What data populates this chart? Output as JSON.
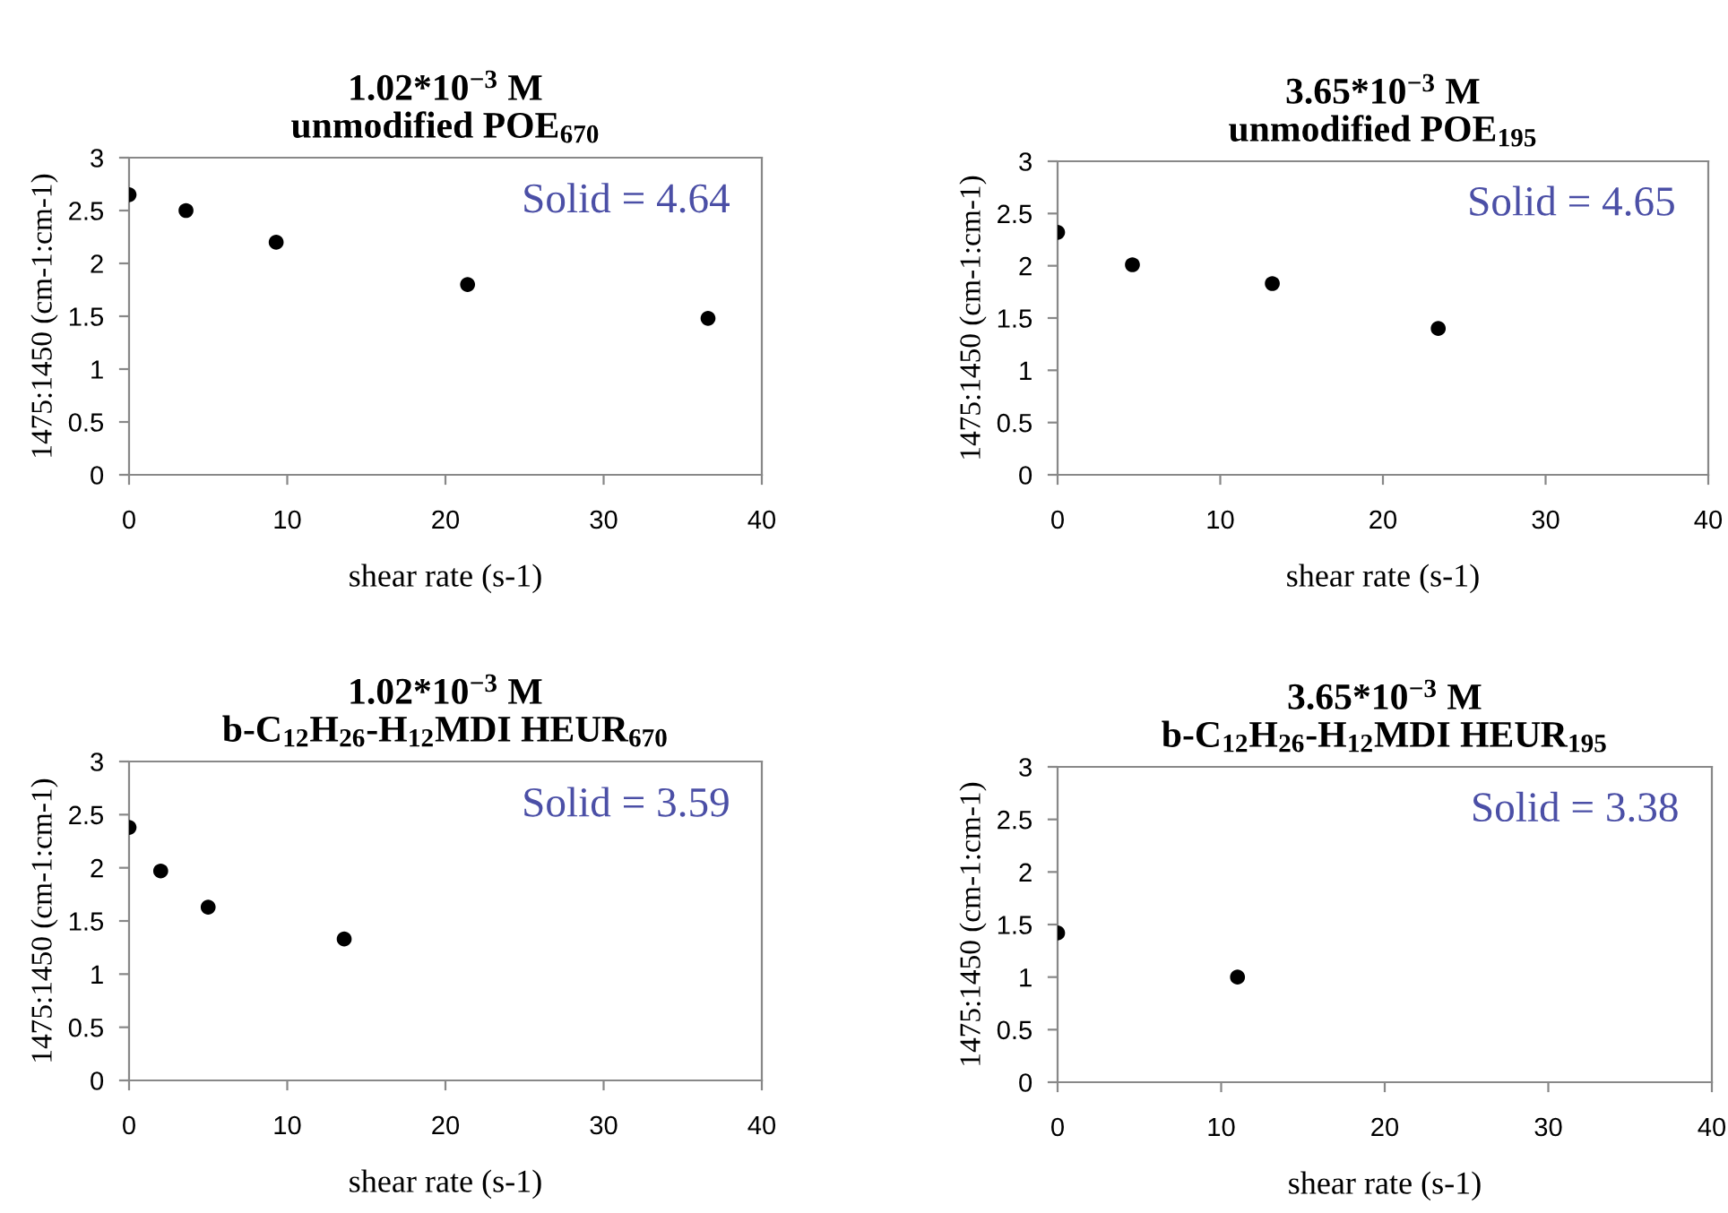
{
  "chart_data": [
    {
      "type": "scatter",
      "title": "1.02*10$^{−3}$ M\nunmodified POE$_{670}$",
      "xlabel": "shear rate (s-1)",
      "ylabel": "1475:1450 (cm-1:cm-1)",
      "annotations": [
        "Solid = 4.64"
      ],
      "marker": "circle",
      "grid": false,
      "xlim": [
        0,
        40
      ],
      "ylim": [
        0,
        3
      ],
      "xticks": [
        0,
        10,
        20,
        30,
        40
      ],
      "yticks": [
        0,
        0.5,
        1,
        1.5,
        2,
        2.5,
        3
      ],
      "series": [
        {
          "color": "#000000",
          "x": [
            0,
            3.6,
            9.3,
            21.4,
            36.6
          ],
          "values": [
            2.65,
            2.5,
            2.2,
            1.8,
            1.48
          ]
        }
      ]
    },
    {
      "type": "scatter",
      "title": "3.65*10$^{−3}$ M\nunmodified POE$_{195}$",
      "xlabel": "shear rate (s-1)",
      "ylabel": "1475:1450 (cm-1:cm-1)",
      "annotations": [
        "Solid = 4.65"
      ],
      "marker": "circle",
      "grid": false,
      "xlim": [
        0,
        40
      ],
      "ylim": [
        0,
        3
      ],
      "xticks": [
        0,
        10,
        20,
        30,
        40
      ],
      "yticks": [
        0,
        0.5,
        1,
        1.5,
        2,
        2.5,
        3
      ],
      "series": [
        {
          "color": "#000000",
          "x": [
            0,
            4.6,
            13.2,
            23.4
          ],
          "values": [
            2.32,
            2.01,
            1.83,
            1.4
          ]
        }
      ]
    },
    {
      "type": "scatter",
      "title": "1.02*10$^{−3}$ M\nb-C$_{12}$H$_{26}$-H$_{12}$MDI HEUR$_{670}$",
      "xlabel": "shear rate (s-1)",
      "ylabel": "1475:1450 (cm-1:cm-1)",
      "annotations": [
        "Solid = 3.59"
      ],
      "marker": "circle",
      "grid": false,
      "xlim": [
        0,
        40
      ],
      "ylim": [
        0,
        3
      ],
      "xticks": [
        0,
        10,
        20,
        30,
        40
      ],
      "yticks": [
        0,
        0.5,
        1,
        1.5,
        2,
        2.5,
        3
      ],
      "series": [
        {
          "color": "#000000",
          "x": [
            0,
            2,
            5,
            13.6
          ],
          "values": [
            2.38,
            1.97,
            1.63,
            1.33
          ]
        }
      ]
    },
    {
      "type": "scatter",
      "title": "3.65*10$^{−3}$ M\nb-C$_{12}$H$_{26}$-H$_{12}$MDI HEUR$_{195}$",
      "xlabel": "shear rate (s-1)",
      "ylabel": "1475:1450 (cm-1:cm-1)",
      "annotations": [
        "Solid = 3.38"
      ],
      "marker": "circle",
      "grid": false,
      "xlim": [
        0,
        40
      ],
      "ylim": [
        0,
        3
      ],
      "xticks": [
        0,
        10,
        20,
        30,
        40
      ],
      "yticks": [
        0,
        0.5,
        1,
        1.5,
        2,
        2.5,
        3
      ],
      "series": [
        {
          "color": "#000000",
          "x": [
            0,
            11
          ],
          "values": [
            1.42,
            1.0
          ]
        }
      ]
    }
  ]
}
